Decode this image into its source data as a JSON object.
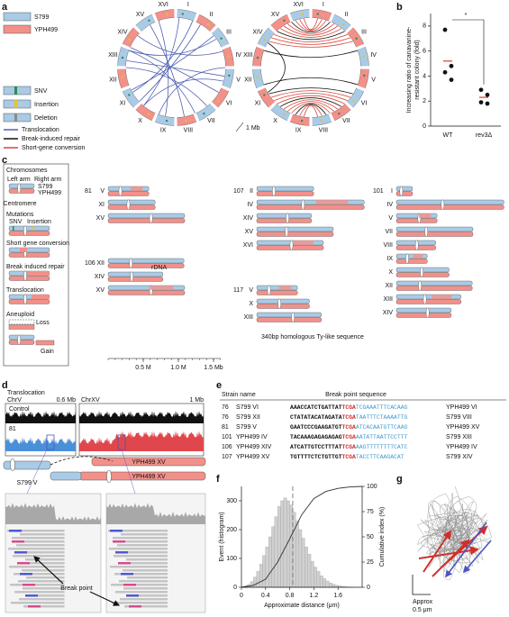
{
  "panel_labels": [
    "a",
    "b",
    "c",
    "d",
    "e",
    "f",
    "g"
  ],
  "panel_a": {
    "strains": [
      {
        "name": "S799",
        "color": "#a9cbe6"
      },
      {
        "name": "YPH499",
        "color": "#f2908a"
      }
    ],
    "mutations": [
      "SNV",
      "Insertion",
      "Deletion"
    ],
    "events": [
      {
        "name": "Translocation",
        "color": "#4f5fb3"
      },
      {
        "name": "Break-induced repair",
        "color": "#111111"
      },
      {
        "name": "Short-gene conversion",
        "color": "#d4473a"
      }
    ],
    "chromosomes": [
      "I",
      "II",
      "III",
      "IV",
      "V",
      "VI",
      "VII",
      "VIII",
      "IX",
      "X",
      "XI",
      "XII",
      "XIII",
      "XIV",
      "XV",
      "XVI"
    ],
    "scale": "1 Mb"
  },
  "chart_data": [
    {
      "type": "dot",
      "ylabel": [
        "Increasing ratio of canavanine-",
        "resistant colony (fold)"
      ],
      "categories": [
        "WT",
        "rev3Δ"
      ],
      "points": [
        [
          7.7,
          4.8,
          4.3,
          3.7
        ],
        [
          2.9,
          2.5,
          1.9,
          1.8
        ]
      ],
      "means": [
        5.2,
        2.3
      ],
      "mean_color": "#e0392b",
      "color": "#111111",
      "ylim": [
        0,
        9
      ],
      "yticks": [
        0,
        2,
        4,
        6,
        8
      ],
      "annotation": "*"
    },
    {
      "type": "histogram",
      "xlabel": "Approximate distance (μm)",
      "ylabel": "Event (histogram)",
      "y2label": "Cumulative index (%)",
      "bins": [
        0,
        0.05,
        0.1,
        0.15,
        0.2,
        0.25,
        0.3,
        0.35,
        0.4,
        0.45,
        0.5,
        0.55,
        0.6,
        0.65,
        0.7,
        0.75,
        0.8,
        0.85,
        0.9,
        0.95,
        1.0,
        1.05,
        1.1,
        1.15,
        1.2,
        1.25,
        1.3,
        1.35,
        1.4,
        1.45,
        1.5,
        1.55,
        1.6,
        1.65,
        1.7,
        1.75,
        1.8,
        1.85,
        1.9
      ],
      "counts": [
        2,
        5,
        10,
        20,
        35,
        55,
        80,
        110,
        140,
        175,
        210,
        245,
        280,
        300,
        310,
        300,
        285,
        260,
        230,
        200,
        170,
        140,
        115,
        90,
        70,
        55,
        40,
        30,
        22,
        15,
        10,
        7,
        5,
        3,
        2,
        1,
        1,
        0
      ],
      "color": "#d0d0d0",
      "xlim": [
        0,
        2.0
      ],
      "xticks": [
        0,
        0.4,
        0.8,
        1.2,
        1.6
      ],
      "ylim": [
        0,
        350
      ],
      "yticks": [
        0,
        100,
        200,
        300
      ],
      "y2lim": [
        0,
        100
      ],
      "y2ticks": [
        0,
        25,
        50,
        75,
        100
      ],
      "cumulative": {
        "x": [
          0,
          0.2,
          0.4,
          0.6,
          0.8,
          1.0,
          1.2,
          1.4,
          1.6,
          1.8,
          2.0
        ],
        "values": [
          0,
          2,
          8,
          25,
          48,
          72,
          88,
          95,
          98,
          99.5,
          100
        ],
        "axis": "y2",
        "color": "#333333"
      },
      "vline": 0.85
    }
  ],
  "panel_c": {
    "legend": {
      "chromosomes": "Chromosomes",
      "left_arm": "Left arm",
      "right_arm": "Right arm",
      "strains": [
        "S799",
        "YPH499"
      ],
      "centromere": "Centromere",
      "mutations": "Mutations",
      "snv": "SNV",
      "insertion": "Insertion",
      "short_gene_conversion": "Short gene conversion",
      "break_induced_repair": "Break induced repair",
      "translocation": "Translocation",
      "aneuploid": "Aneuploid",
      "loss": "Loss",
      "gain": "Gain"
    },
    "groups": [
      {
        "strain": "81",
        "rows": [
          {
            "chr": "V",
            "length": 0.58
          },
          {
            "chr": "XI",
            "length": 0.67
          },
          {
            "chr": "XV",
            "length": 1.09
          }
        ]
      },
      {
        "strain": "106",
        "rows": [
          {
            "chr": "XII",
            "length": 1.08
          },
          {
            "chr": "XIV",
            "length": 0.78
          },
          {
            "chr": "XV",
            "length": 1.09
          }
        ]
      },
      {
        "strain": "107",
        "rows": [
          {
            "chr": "II",
            "length": 0.81
          },
          {
            "chr": "IV",
            "length": 1.53
          },
          {
            "chr": "XIV",
            "length": 0.78
          },
          {
            "chr": "XV",
            "length": 1.09
          },
          {
            "chr": "XVI",
            "length": 0.95
          }
        ]
      },
      {
        "strain": "117",
        "rows": [
          {
            "chr": "V",
            "length": 0.58
          },
          {
            "chr": "X",
            "length": 0.75
          },
          {
            "chr": "XIII",
            "length": 0.92
          }
        ]
      },
      {
        "strain": "101",
        "rows": [
          {
            "chr": "I",
            "length": 0.23
          },
          {
            "chr": "IV",
            "length": 1.53
          },
          {
            "chr": "V",
            "length": 0.58
          },
          {
            "chr": "VII",
            "length": 1.09
          },
          {
            "chr": "VIII",
            "length": 0.56
          },
          {
            "chr": "IX",
            "length": 0.44
          },
          {
            "chr": "X",
            "length": 0.75
          },
          {
            "chr": "XII",
            "length": 1.08
          },
          {
            "chr": "XIII",
            "length": 0.92
          },
          {
            "chr": "XIV",
            "length": 0.78
          }
        ]
      }
    ],
    "rdna": "rDNA",
    "note": "340bp homologous Ty-like sequence",
    "scale_ticks": [
      {
        "value": 0.5,
        "label": "0.5 M"
      },
      {
        "value": 1.0,
        "label": "1.0 M"
      },
      {
        "value": 1.5,
        "label": "1.5 Mb"
      }
    ]
  },
  "panel_d": {
    "title": "Translocation",
    "chr_left": "ChrV",
    "size_left": "0.6 Mb",
    "chr_right": "ChrXV",
    "size_right": "1 Mb",
    "tracks": [
      "Control",
      "81"
    ],
    "labels": [
      "S799 V",
      "YPH499 XV",
      "YPH499 XV"
    ],
    "break_point": "Break point"
  },
  "panel_e": {
    "headers": [
      "Strain name",
      "Break point sequence"
    ],
    "rows": [
      {
        "id": "76",
        "strain": "S799 VI",
        "seq": [
          "AAACCATCTGATTAT",
          "TCGA",
          "TCGAAATTTCACAAG"
        ],
        "partner": "YPH499 VI"
      },
      {
        "id": "76",
        "strain": "S799 XII",
        "seq": [
          "CTATATACATAGATA",
          "TCGA",
          "TAATTTCTAAAATTG"
        ],
        "partner": "S799 VIII"
      },
      {
        "id": "81",
        "strain": "S799 V",
        "seq": [
          "GAATCCCGAAGATGT",
          "TCGA",
          "ATCACAATGTTCAAG"
        ],
        "partner": "YPH499 XV"
      },
      {
        "id": "101",
        "strain": "YPH499 IV",
        "seq": [
          "TACAAAGAGAGAGAG",
          "TCGA",
          "AATATTAATTCCTTT"
        ],
        "partner": "S799 XIII"
      },
      {
        "id": "106",
        "strain": "YPH499 XIV",
        "seq": [
          "ATCATTGTCCTTTAT",
          "TCGA",
          "AAGTTTTTTTTCATC"
        ],
        "partner": "YPH499 IV"
      },
      {
        "id": "107",
        "strain": "YPH499 XV",
        "seq": [
          "TGTTTTCTCTGTTGT",
          "TCGA",
          "TACCTTCAAGACAT"
        ],
        "partner": "S799 XIV"
      }
    ]
  },
  "panel_g": {
    "scale": [
      "Approx",
      "0.5 μm"
    ]
  }
}
